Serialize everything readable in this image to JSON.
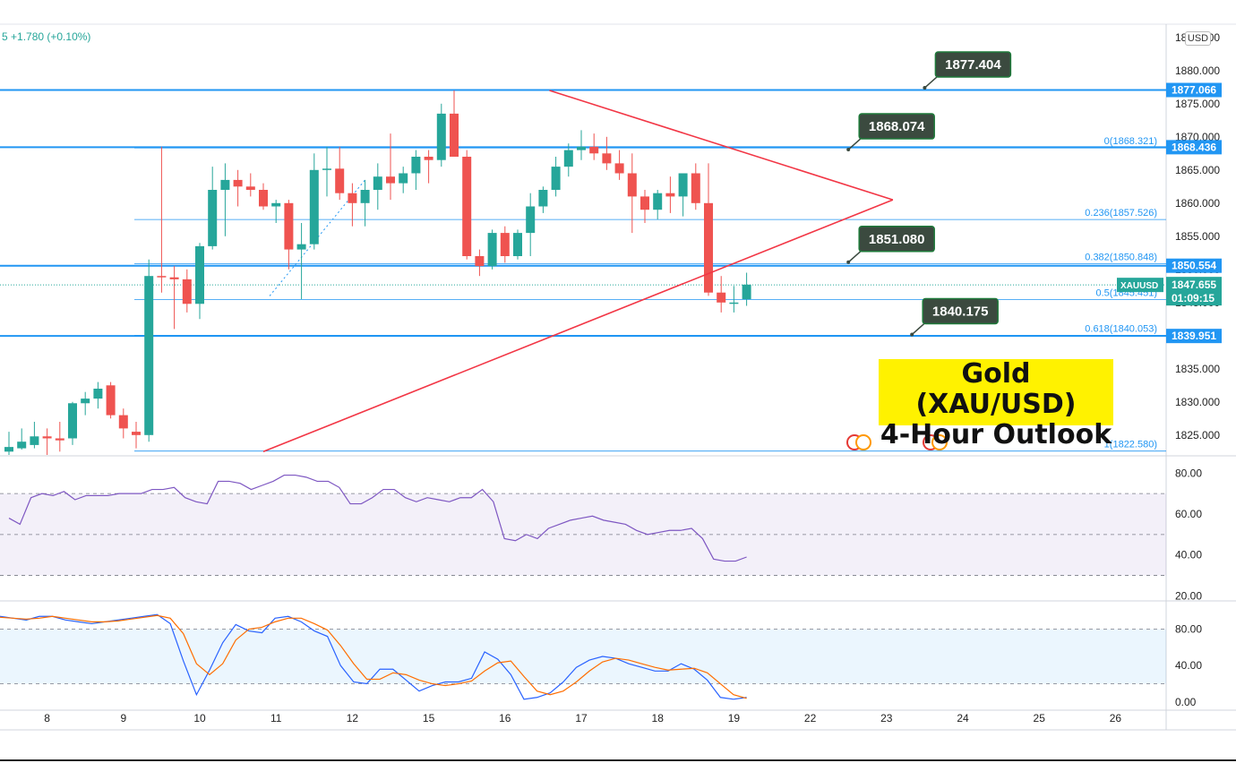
{
  "header": {
    "change_text": "5  +1.780 (+0.10%)",
    "currency": "USD"
  },
  "title": {
    "line1": "Gold (XAU/USD)",
    "line2": "4-Hour Outlook"
  },
  "colors": {
    "up": "#26a69a",
    "down": "#ef5350",
    "level": "#2196f3",
    "triangle": "#f23645",
    "rsi": "#7e57c2",
    "stoch_k": "#2962ff",
    "stoch_d": "#ff6d00",
    "callout": "#3b4a3f",
    "highlight": "#fff200"
  },
  "chart_data": [
    {
      "type": "candlestick",
      "symbol": "XAUUSD",
      "title": "Gold (XAU/USD) 4-Hour Outlook",
      "ylim": [
        1822,
        1887
      ],
      "y_ticks": [
        1825,
        1830,
        1835,
        1840,
        1845,
        1850,
        1855,
        1860,
        1865,
        1870,
        1875,
        1880,
        1885
      ],
      "y_tick_labels": [
        "1825.000",
        "1830.000",
        "1835.000",
        "1840.000",
        "1845.000",
        "1850.000",
        "1855.000",
        "1860.000",
        "1865.000",
        "1870.000",
        "1875.000",
        "1880.000",
        "1885.000"
      ],
      "x_labels": [
        "8",
        "9",
        "10",
        "11",
        "12",
        "15",
        "16",
        "17",
        "18",
        "19",
        "22",
        "23",
        "24",
        "25",
        "26"
      ],
      "x_label_slots": [
        3,
        9,
        15,
        21,
        27,
        33,
        39,
        45,
        51,
        57,
        63,
        69,
        75,
        81,
        87
      ],
      "candles": [
        {
          "o": 1822.5,
          "h": 1825.5,
          "l": 1821.0,
          "c": 1823.2
        },
        {
          "o": 1823.0,
          "h": 1826.0,
          "l": 1822.8,
          "c": 1824.0
        },
        {
          "o": 1823.5,
          "h": 1827.0,
          "l": 1823.0,
          "c": 1824.8
        },
        {
          "o": 1824.8,
          "h": 1826.0,
          "l": 1822.0,
          "c": 1824.5
        },
        {
          "o": 1824.5,
          "h": 1827.0,
          "l": 1822.5,
          "c": 1824.2
        },
        {
          "o": 1824.5,
          "h": 1830.0,
          "l": 1823.5,
          "c": 1829.8
        },
        {
          "o": 1829.8,
          "h": 1831.5,
          "l": 1828.0,
          "c": 1830.5
        },
        {
          "o": 1830.5,
          "h": 1833.0,
          "l": 1829.0,
          "c": 1832.0
        },
        {
          "o": 1832.5,
          "h": 1833.0,
          "l": 1827.5,
          "c": 1828.0
        },
        {
          "o": 1828.0,
          "h": 1829.0,
          "l": 1824.5,
          "c": 1826.0
        },
        {
          "o": 1825.5,
          "h": 1827.0,
          "l": 1823.0,
          "c": 1825.0
        },
        {
          "o": 1825.0,
          "h": 1851.5,
          "l": 1824.0,
          "c": 1849.0
        },
        {
          "o": 1849.0,
          "h": 1868.5,
          "l": 1846.5,
          "c": 1848.8
        },
        {
          "o": 1848.8,
          "h": 1850.5,
          "l": 1841.0,
          "c": 1848.5
        },
        {
          "o": 1848.5,
          "h": 1850.0,
          "l": 1843.5,
          "c": 1844.8
        },
        {
          "o": 1844.8,
          "h": 1854.0,
          "l": 1842.5,
          "c": 1853.5
        },
        {
          "o": 1853.5,
          "h": 1865.5,
          "l": 1853.0,
          "c": 1862.0
        },
        {
          "o": 1862.0,
          "h": 1866.0,
          "l": 1855.0,
          "c": 1863.5
        },
        {
          "o": 1863.5,
          "h": 1865.0,
          "l": 1859.5,
          "c": 1862.5
        },
        {
          "o": 1862.5,
          "h": 1864.5,
          "l": 1861.0,
          "c": 1862.0
        },
        {
          "o": 1862.0,
          "h": 1863.0,
          "l": 1859.0,
          "c": 1859.5
        },
        {
          "o": 1859.5,
          "h": 1860.5,
          "l": 1857.0,
          "c": 1860.0
        },
        {
          "o": 1860.0,
          "h": 1860.5,
          "l": 1850.0,
          "c": 1853.0
        },
        {
          "o": 1853.0,
          "h": 1857.0,
          "l": 1845.5,
          "c": 1853.8
        },
        {
          "o": 1853.8,
          "h": 1867.5,
          "l": 1853.0,
          "c": 1865.0
        },
        {
          "o": 1865.0,
          "h": 1868.5,
          "l": 1861.0,
          "c": 1865.2
        },
        {
          "o": 1865.2,
          "h": 1868.5,
          "l": 1860.5,
          "c": 1861.5
        },
        {
          "o": 1861.5,
          "h": 1863.0,
          "l": 1856.5,
          "c": 1860.0
        },
        {
          "o": 1860.0,
          "h": 1863.5,
          "l": 1856.5,
          "c": 1862.0
        },
        {
          "o": 1862.0,
          "h": 1866.0,
          "l": 1859.0,
          "c": 1864.0
        },
        {
          "o": 1864.0,
          "h": 1870.5,
          "l": 1860.5,
          "c": 1863.0
        },
        {
          "o": 1863.0,
          "h": 1865.5,
          "l": 1861.5,
          "c": 1864.5
        },
        {
          "o": 1864.5,
          "h": 1868.0,
          "l": 1862.0,
          "c": 1867.0
        },
        {
          "o": 1867.0,
          "h": 1868.0,
          "l": 1863.0,
          "c": 1866.5
        },
        {
          "o": 1866.5,
          "h": 1875.0,
          "l": 1865.5,
          "c": 1873.5
        },
        {
          "o": 1873.5,
          "h": 1877.0,
          "l": 1867.0,
          "c": 1867.0
        },
        {
          "o": 1867.0,
          "h": 1868.0,
          "l": 1851.5,
          "c": 1852.0
        },
        {
          "o": 1852.0,
          "h": 1853.0,
          "l": 1849.0,
          "c": 1850.5
        },
        {
          "o": 1850.5,
          "h": 1856.0,
          "l": 1850.0,
          "c": 1855.5
        },
        {
          "o": 1855.5,
          "h": 1856.5,
          "l": 1851.0,
          "c": 1852.0
        },
        {
          "o": 1852.0,
          "h": 1856.0,
          "l": 1851.5,
          "c": 1855.5
        },
        {
          "o": 1855.5,
          "h": 1861.5,
          "l": 1852.0,
          "c": 1859.5
        },
        {
          "o": 1859.5,
          "h": 1862.5,
          "l": 1858.5,
          "c": 1862.0
        },
        {
          "o": 1862.0,
          "h": 1867.0,
          "l": 1861.0,
          "c": 1865.5
        },
        {
          "o": 1865.5,
          "h": 1869.0,
          "l": 1864.0,
          "c": 1868.0
        },
        {
          "o": 1868.0,
          "h": 1871.0,
          "l": 1866.5,
          "c": 1868.5
        },
        {
          "o": 1868.5,
          "h": 1870.5,
          "l": 1866.5,
          "c": 1867.5
        },
        {
          "o": 1867.5,
          "h": 1870.0,
          "l": 1865.0,
          "c": 1866.0
        },
        {
          "o": 1866.0,
          "h": 1868.0,
          "l": 1863.5,
          "c": 1864.5
        },
        {
          "o": 1864.5,
          "h": 1867.5,
          "l": 1855.5,
          "c": 1861.0
        },
        {
          "o": 1861.0,
          "h": 1862.0,
          "l": 1857.0,
          "c": 1859.0
        },
        {
          "o": 1859.0,
          "h": 1862.0,
          "l": 1857.5,
          "c": 1861.5
        },
        {
          "o": 1861.5,
          "h": 1864.0,
          "l": 1858.5,
          "c": 1861.0
        },
        {
          "o": 1861.0,
          "h": 1864.5,
          "l": 1858.0,
          "c": 1864.5
        },
        {
          "o": 1864.5,
          "h": 1866.0,
          "l": 1859.0,
          "c": 1860.0
        },
        {
          "o": 1860.0,
          "h": 1866.0,
          "l": 1846.0,
          "c": 1846.5
        },
        {
          "o": 1846.5,
          "h": 1849.0,
          "l": 1843.5,
          "c": 1845.0
        },
        {
          "o": 1845.0,
          "h": 1847.5,
          "l": 1843.5,
          "c": 1845.0
        },
        {
          "o": 1845.5,
          "h": 1849.5,
          "l": 1844.5,
          "c": 1847.7
        }
      ],
      "levels": [
        {
          "value": 1877.066,
          "label": "1877.066"
        },
        {
          "value": 1868.436,
          "label": "1868.436"
        },
        {
          "value": 1850.554,
          "label": "1850.554"
        },
        {
          "value": 1839.951,
          "label": "1839.951"
        }
      ],
      "fib_levels": [
        {
          "value": 1868.321,
          "label": "0(1868.321)"
        },
        {
          "value": 1857.526,
          "label": "0.236(1857.526)"
        },
        {
          "value": 1850.848,
          "label": "0.382(1850.848)"
        },
        {
          "value": 1845.451,
          "label": "0.5(1845.451)"
        },
        {
          "value": 1840.053,
          "label": "0.618(1840.053)"
        },
        {
          "value": 1822.58,
          "label": "1(1822.580)"
        }
      ],
      "callouts": [
        {
          "label": "1877.404",
          "value": 1877.404,
          "slot": 72
        },
        {
          "label": "1868.074",
          "value": 1868.074,
          "slot": 66
        },
        {
          "label": "1851.080",
          "value": 1851.08,
          "slot": 66
        },
        {
          "label": "1840.175",
          "value": 1840.175,
          "slot": 71
        }
      ],
      "triangle": {
        "upper": {
          "from": [
            42.5,
            1877.0
          ],
          "to": [
            69.5,
            1860.5
          ]
        },
        "lower": {
          "from": [
            20,
            1822.5
          ],
          "to": [
            69.5,
            1860.5
          ]
        }
      },
      "fib_anchor": {
        "from": [
          20.5,
          1846.0
        ],
        "to": [
          28,
          1863.5
        ]
      },
      "last_price": {
        "symbol": "XAUUSD",
        "value": "1847.655",
        "countdown": "01:09:15"
      }
    },
    {
      "type": "line",
      "name": "RSI",
      "ylim": [
        18,
        88
      ],
      "y_ticks": [
        20,
        40,
        60,
        80
      ],
      "y_tick_labels": [
        "20.00",
        "40.00",
        "60.00",
        "80.00"
      ],
      "band": [
        30,
        70
      ],
      "mid": 50,
      "values": [
        58,
        55,
        68,
        70,
        69,
        71,
        67,
        69,
        69,
        69,
        70,
        70,
        70,
        72,
        72,
        73,
        68,
        66,
        65,
        76,
        76,
        75,
        72,
        74,
        76,
        79,
        79,
        78,
        76,
        76,
        73,
        65,
        65,
        68,
        72,
        72,
        68,
        66,
        68,
        67,
        66,
        68,
        68,
        72,
        66,
        48,
        47,
        50,
        48,
        53,
        55,
        57,
        58,
        59,
        57,
        56,
        55,
        52,
        50,
        51,
        52,
        52,
        53,
        48,
        38,
        37,
        37,
        39
      ]
    },
    {
      "type": "line",
      "name": "Stochastic",
      "ylim": [
        -8,
        110
      ],
      "y_ticks": [
        0,
        40,
        80
      ],
      "y_tick_labels": [
        "0.00",
        "40.00",
        "80.00"
      ],
      "band": [
        20,
        80
      ],
      "series": [
        {
          "name": "%K",
          "values": [
            94,
            92,
            90,
            94,
            94,
            90,
            88,
            86,
            88,
            90,
            92,
            94,
            96,
            86,
            45,
            8,
            35,
            65,
            85,
            78,
            76,
            92,
            94,
            88,
            78,
            72,
            40,
            22,
            20,
            36,
            36,
            24,
            12,
            18,
            22,
            22,
            26,
            55,
            47,
            30,
            3,
            5,
            10,
            22,
            38,
            46,
            50,
            48,
            42,
            38,
            34,
            34,
            42,
            36,
            24,
            5,
            3,
            5
          ]
        },
        {
          "name": "%D",
          "values": [
            93,
            92,
            91,
            92,
            94,
            92,
            90,
            88,
            88,
            89,
            91,
            93,
            95,
            92,
            75,
            42,
            30,
            42,
            68,
            80,
            82,
            88,
            92,
            92,
            86,
            79,
            62,
            42,
            25,
            25,
            32,
            30,
            24,
            20,
            18,
            20,
            23,
            34,
            43,
            45,
            28,
            12,
            8,
            12,
            22,
            34,
            44,
            48,
            46,
            42,
            38,
            35,
            36,
            37,
            32,
            20,
            8,
            4
          ]
        }
      ]
    }
  ]
}
